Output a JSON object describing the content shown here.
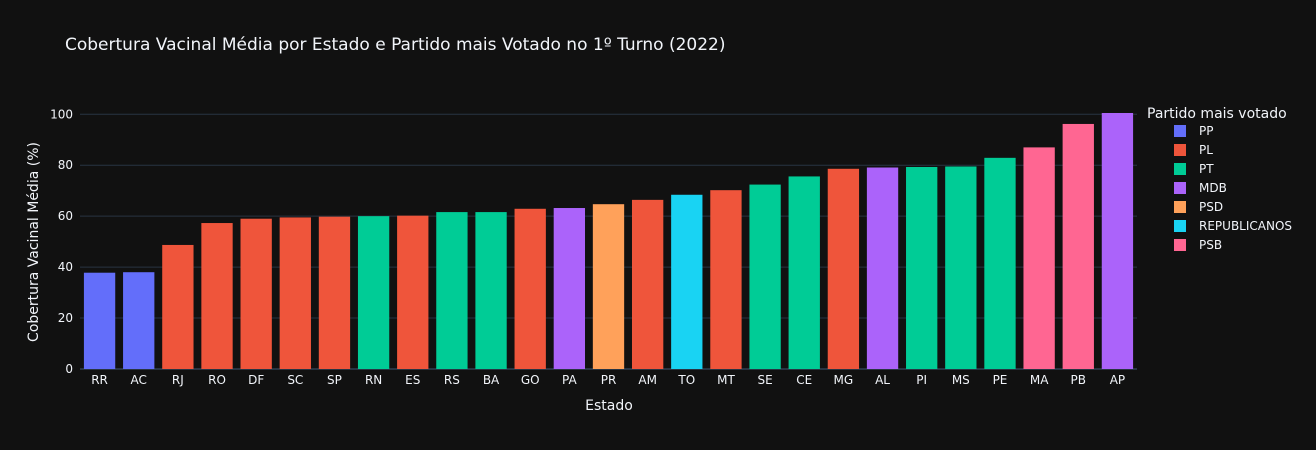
{
  "chart_data": {
    "type": "bar",
    "title": "Cobertura Vacinal Média por Estado e Partido mais Votado no 1º Turno (2022)",
    "xlabel": "Estado",
    "ylabel": "Cobertura Vacinal Média (%)",
    "ylim": [
      0,
      100.5
    ],
    "yticks": [
      0,
      20,
      40,
      60,
      80,
      100
    ],
    "grid": true,
    "legend": {
      "title": "Partido mais votado",
      "placement": "right",
      "entries": [
        {
          "name": "PP",
          "color": "#636efa"
        },
        {
          "name": "PL",
          "color": "#ef553b"
        },
        {
          "name": "PT",
          "color": "#00cc96"
        },
        {
          "name": "MDB",
          "color": "#ab63fa"
        },
        {
          "name": "PSD",
          "color": "#ffa15a"
        },
        {
          "name": "REPUBLICANOS",
          "color": "#19d3f3"
        },
        {
          "name": "PSB",
          "color": "#ff6692"
        }
      ]
    },
    "bars": [
      {
        "category": "RR",
        "value": 37.8,
        "party": "PP"
      },
      {
        "category": "AC",
        "value": 38.0,
        "party": "PP"
      },
      {
        "category": "RJ",
        "value": 48.7,
        "party": "PL"
      },
      {
        "category": "RO",
        "value": 57.3,
        "party": "PL"
      },
      {
        "category": "DF",
        "value": 59.0,
        "party": "PL"
      },
      {
        "category": "SC",
        "value": 59.5,
        "party": "PL"
      },
      {
        "category": "SP",
        "value": 59.8,
        "party": "PL"
      },
      {
        "category": "RN",
        "value": 60.0,
        "party": "PT"
      },
      {
        "category": "ES",
        "value": 60.2,
        "party": "PL"
      },
      {
        "category": "RS",
        "value": 61.6,
        "party": "PT"
      },
      {
        "category": "BA",
        "value": 61.6,
        "party": "PT"
      },
      {
        "category": "GO",
        "value": 62.9,
        "party": "PL"
      },
      {
        "category": "PA",
        "value": 63.2,
        "party": "MDB"
      },
      {
        "category": "PR",
        "value": 64.7,
        "party": "PSD"
      },
      {
        "category": "AM",
        "value": 66.4,
        "party": "PL"
      },
      {
        "category": "TO",
        "value": 68.4,
        "party": "REPUBLICANOS"
      },
      {
        "category": "MT",
        "value": 70.2,
        "party": "PL"
      },
      {
        "category": "SE",
        "value": 72.4,
        "party": "PT"
      },
      {
        "category": "CE",
        "value": 75.6,
        "party": "PT"
      },
      {
        "category": "MG",
        "value": 78.6,
        "party": "PL"
      },
      {
        "category": "AL",
        "value": 79.1,
        "party": "MDB"
      },
      {
        "category": "PI",
        "value": 79.3,
        "party": "PT"
      },
      {
        "category": "MS",
        "value": 79.5,
        "party": "PT"
      },
      {
        "category": "PE",
        "value": 82.9,
        "party": "PT"
      },
      {
        "category": "MA",
        "value": 87.0,
        "party": "PSB"
      },
      {
        "category": "PB",
        "value": 96.2,
        "party": "PSB"
      },
      {
        "category": "AP",
        "value": 100.5,
        "party": "MDB"
      }
    ]
  }
}
